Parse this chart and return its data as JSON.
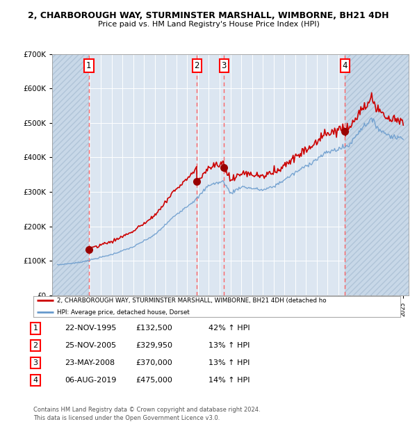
{
  "title1": "2, CHARBOROUGH WAY, STURMINSTER MARSHALL, WIMBORNE, BH21 4DH",
  "title2": "Price paid vs. HM Land Registry's House Price Index (HPI)",
  "background_color": "#ffffff",
  "plot_bg_color": "#dce6f1",
  "hatch_color": "#c8d8e8",
  "grid_color": "#ffffff",
  "purchases": [
    {
      "num": 1,
      "date_x": 1995.9,
      "price": 132500
    },
    {
      "num": 2,
      "date_x": 2005.9,
      "price": 329950
    },
    {
      "num": 3,
      "date_x": 2008.4,
      "price": 370000
    },
    {
      "num": 4,
      "date_x": 2019.6,
      "price": 475000
    }
  ],
  "hpi_line_color": "#6699cc",
  "price_line_color": "#cc0000",
  "marker_color": "#990000",
  "vline_color": "#ff5555",
  "ylim": [
    0,
    700000
  ],
  "xlim_start": 1992.5,
  "xlim_end": 2025.5,
  "legend_label1": "2, CHARBOROUGH WAY, STURMINSTER MARSHALL, WIMBORNE, BH21 4DH (detached ho",
  "legend_label2": "HPI: Average price, detached house, Dorset",
  "footer1": "Contains HM Land Registry data © Crown copyright and database right 2024.",
  "footer2": "This data is licensed under the Open Government Licence v3.0.",
  "table_rows": [
    {
      "num": "1",
      "date": "22-NOV-1995",
      "price": "£132,500",
      "pct": "42% ↑ HPI"
    },
    {
      "num": "2",
      "date": "25-NOV-2005",
      "price": "£329,950",
      "pct": "13% ↑ HPI"
    },
    {
      "num": "3",
      "date": "23-MAY-2008",
      "price": "£370,000",
      "pct": "13% ↑ HPI"
    },
    {
      "num": "4",
      "date": "06-AUG-2019",
      "price": "£475,000",
      "pct": "14% ↑ HPI"
    }
  ]
}
